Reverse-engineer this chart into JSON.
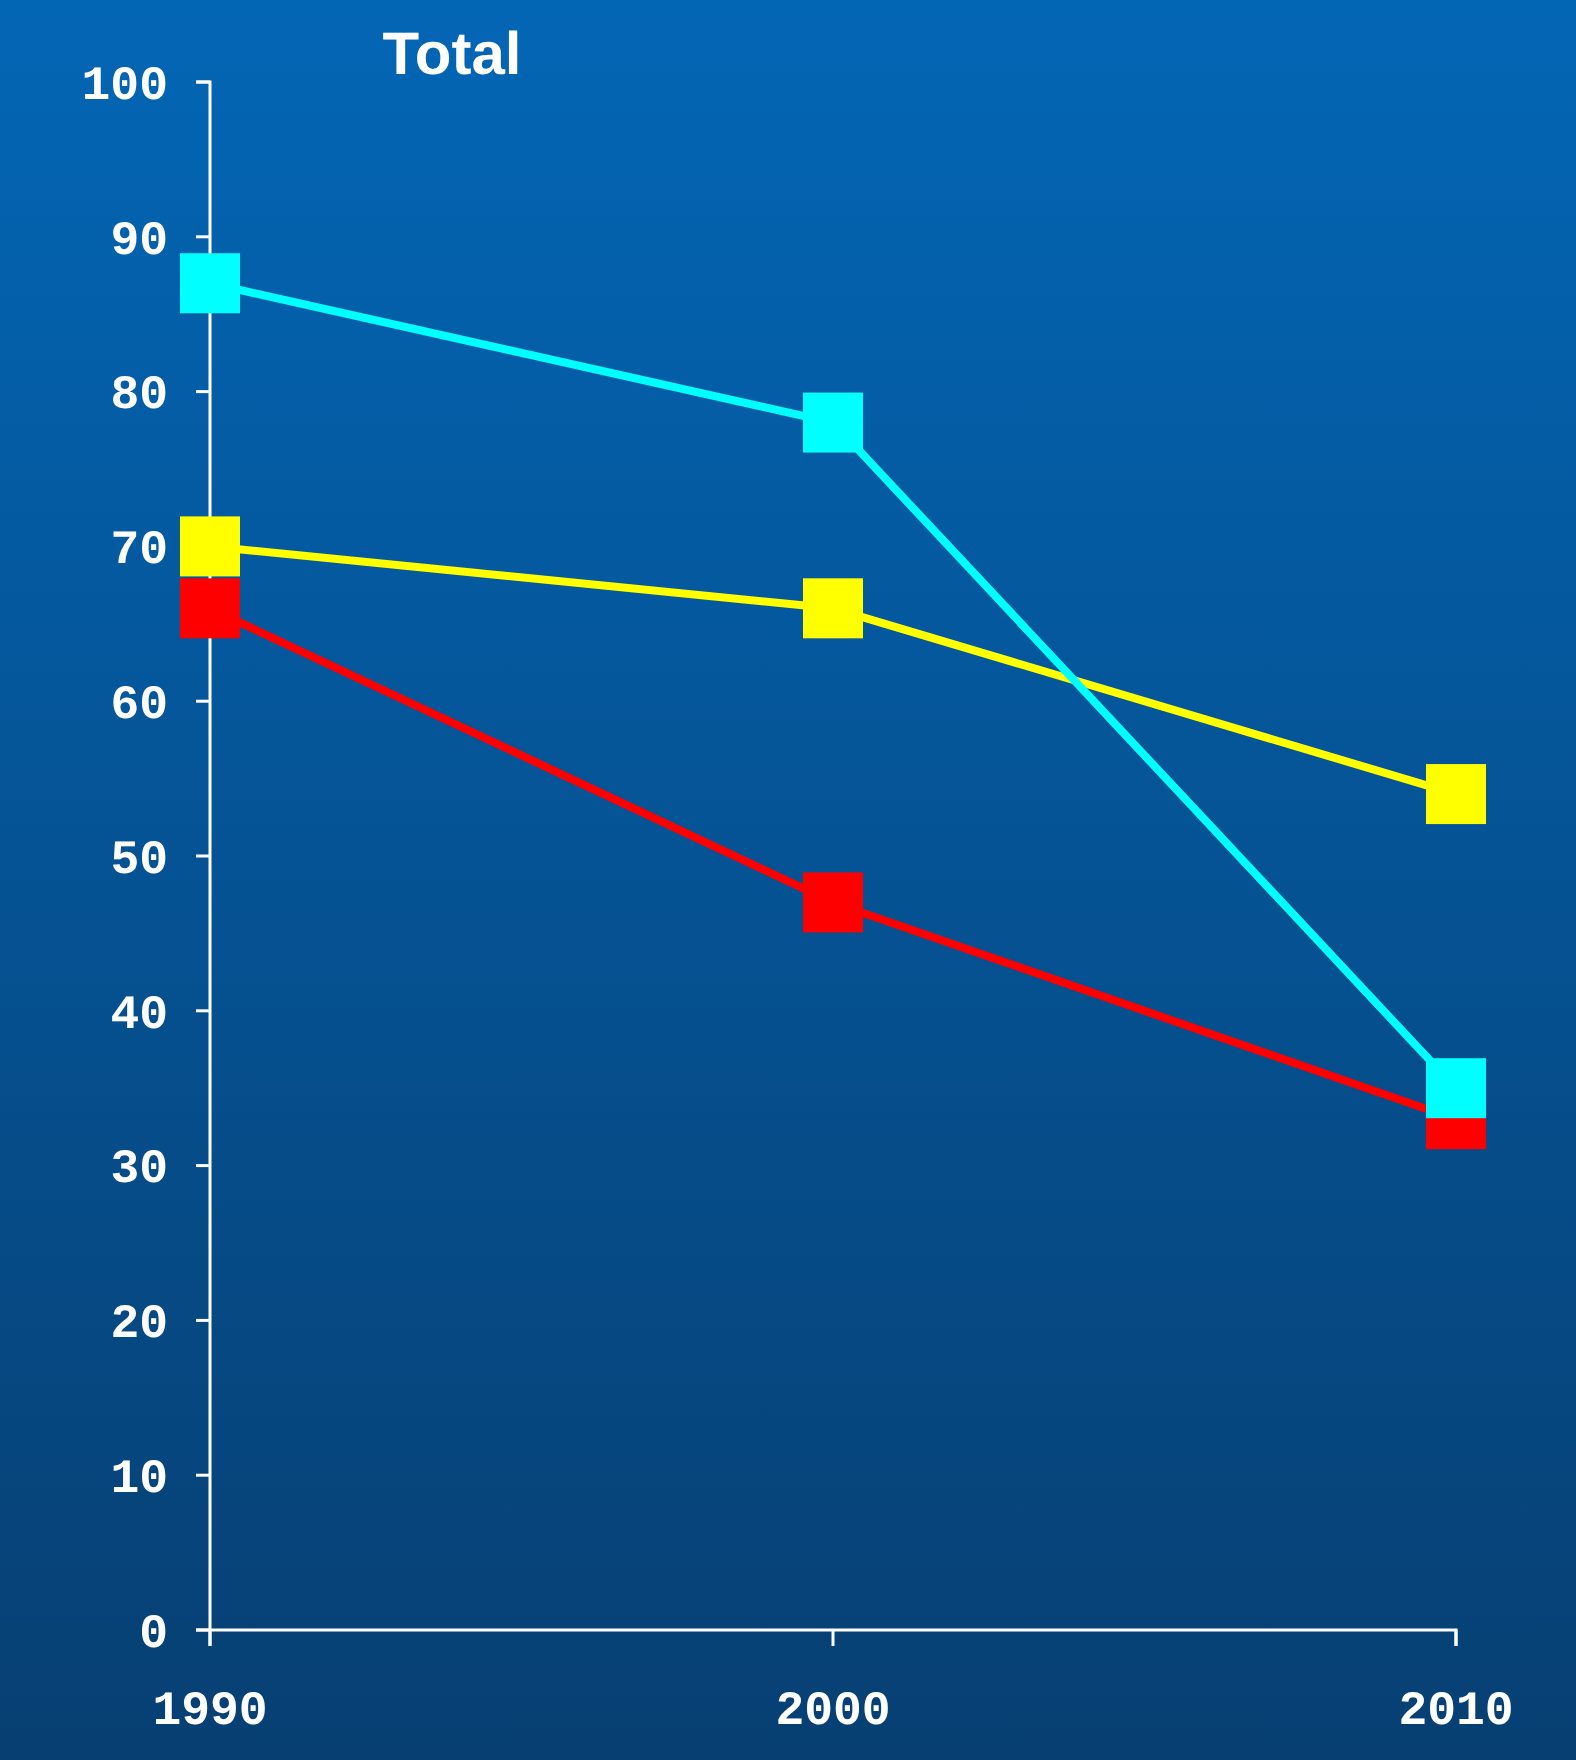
{
  "chart_data": {
    "type": "line",
    "title": "Total",
    "x": [
      1990,
      2000,
      2010
    ],
    "series": [
      {
        "color": "#00ffff",
        "values": [
          87,
          78,
          35
        ]
      },
      {
        "color": "#ffff00",
        "values": [
          70,
          66,
          54
        ]
      },
      {
        "color": "#ff0000",
        "values": [
          66,
          47,
          33
        ]
      }
    ],
    "xlim": [
      1990,
      2010
    ],
    "xticks": [
      1990,
      2000,
      2010
    ],
    "ylim": [
      0,
      100
    ],
    "yticks": [
      0,
      10,
      20,
      30,
      40,
      50,
      60,
      70,
      80,
      90,
      100
    ],
    "marker": "square",
    "line_style": "solid"
  }
}
